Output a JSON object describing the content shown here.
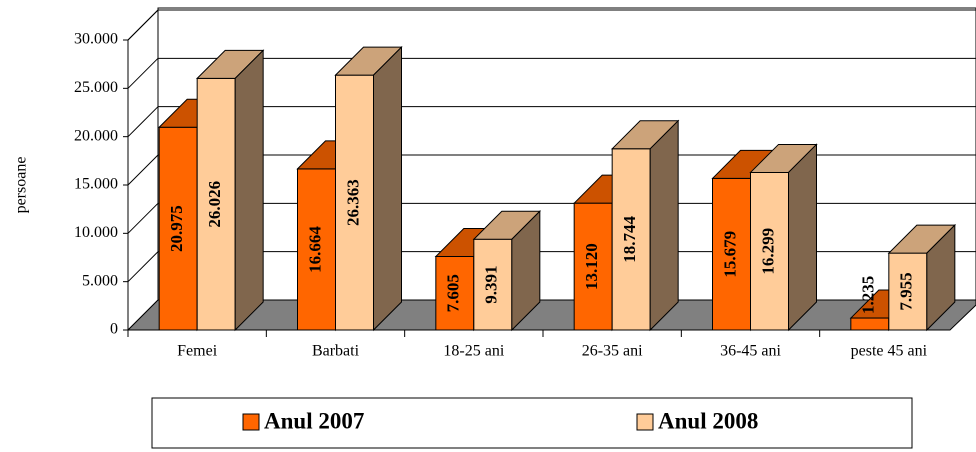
{
  "chart_data": {
    "type": "bar3d",
    "y_label": "persoane",
    "categories": [
      "Femei",
      "Barbati",
      "18-25 ani",
      "26-35 ani",
      "36-45 ani",
      "peste 45 ani"
    ],
    "series": [
      {
        "name": "Anul 2007",
        "color": "#ff6600",
        "values": [
          20975,
          16664,
          7605,
          13120,
          15679,
          1235
        ],
        "value_labels": [
          "20.975",
          "16.664",
          "7.605",
          "13.120",
          "15.679",
          "1.235"
        ]
      },
      {
        "name": "Anul 2008",
        "color": "#ffcc99",
        "values": [
          26026,
          26363,
          9391,
          18744,
          16299,
          7955
        ],
        "value_labels": [
          "26.026",
          "26.363",
          "9.391",
          "18.744",
          "16.299",
          "7.955"
        ]
      }
    ],
    "ylim": [
      0,
      30000
    ],
    "yticks": [
      0,
      {
        "value": 5000,
        "label": "5.000"
      },
      {
        "value": 10000,
        "label": "10.000"
      },
      {
        "value": 15000,
        "label": "15.000"
      },
      {
        "value": 20000,
        "label": "20.000"
      },
      {
        "value": 25000,
        "label": "25.000"
      },
      {
        "value": 30000,
        "label": "30.000"
      }
    ],
    "grid": true,
    "legend": "bottom"
  }
}
